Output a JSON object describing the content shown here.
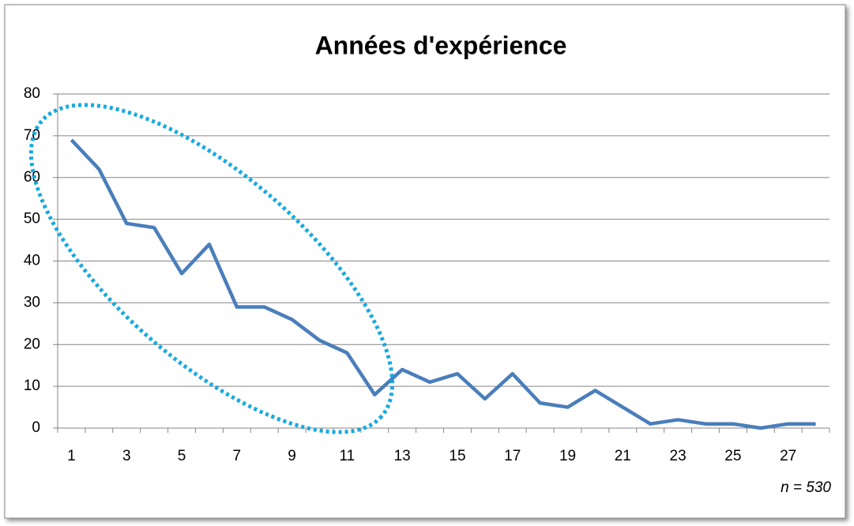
{
  "chart_data": {
    "type": "line",
    "title": "Années d'expérience",
    "categories": [
      "1",
      null,
      "3",
      null,
      "5",
      null,
      "7",
      null,
      "9",
      null,
      "11",
      null,
      "13",
      null,
      "15",
      null,
      "17",
      null,
      "19",
      null,
      "21",
      null,
      "23",
      null,
      "25",
      null,
      "27",
      null
    ],
    "series": [
      {
        "name": "Années d'expérience",
        "color": "#4a7ebb",
        "values": [
          69,
          62,
          49,
          48,
          37,
          44,
          29,
          29,
          26,
          21,
          18,
          8,
          14,
          11,
          13,
          7,
          13,
          6,
          5,
          9,
          5,
          1,
          2,
          1,
          1,
          0,
          1,
          1
        ]
      }
    ],
    "ylim": [
      0,
      80
    ],
    "yticks": [
      0,
      10,
      20,
      30,
      40,
      50,
      60,
      70,
      80
    ],
    "grid": true,
    "annotation": "n = 530"
  }
}
